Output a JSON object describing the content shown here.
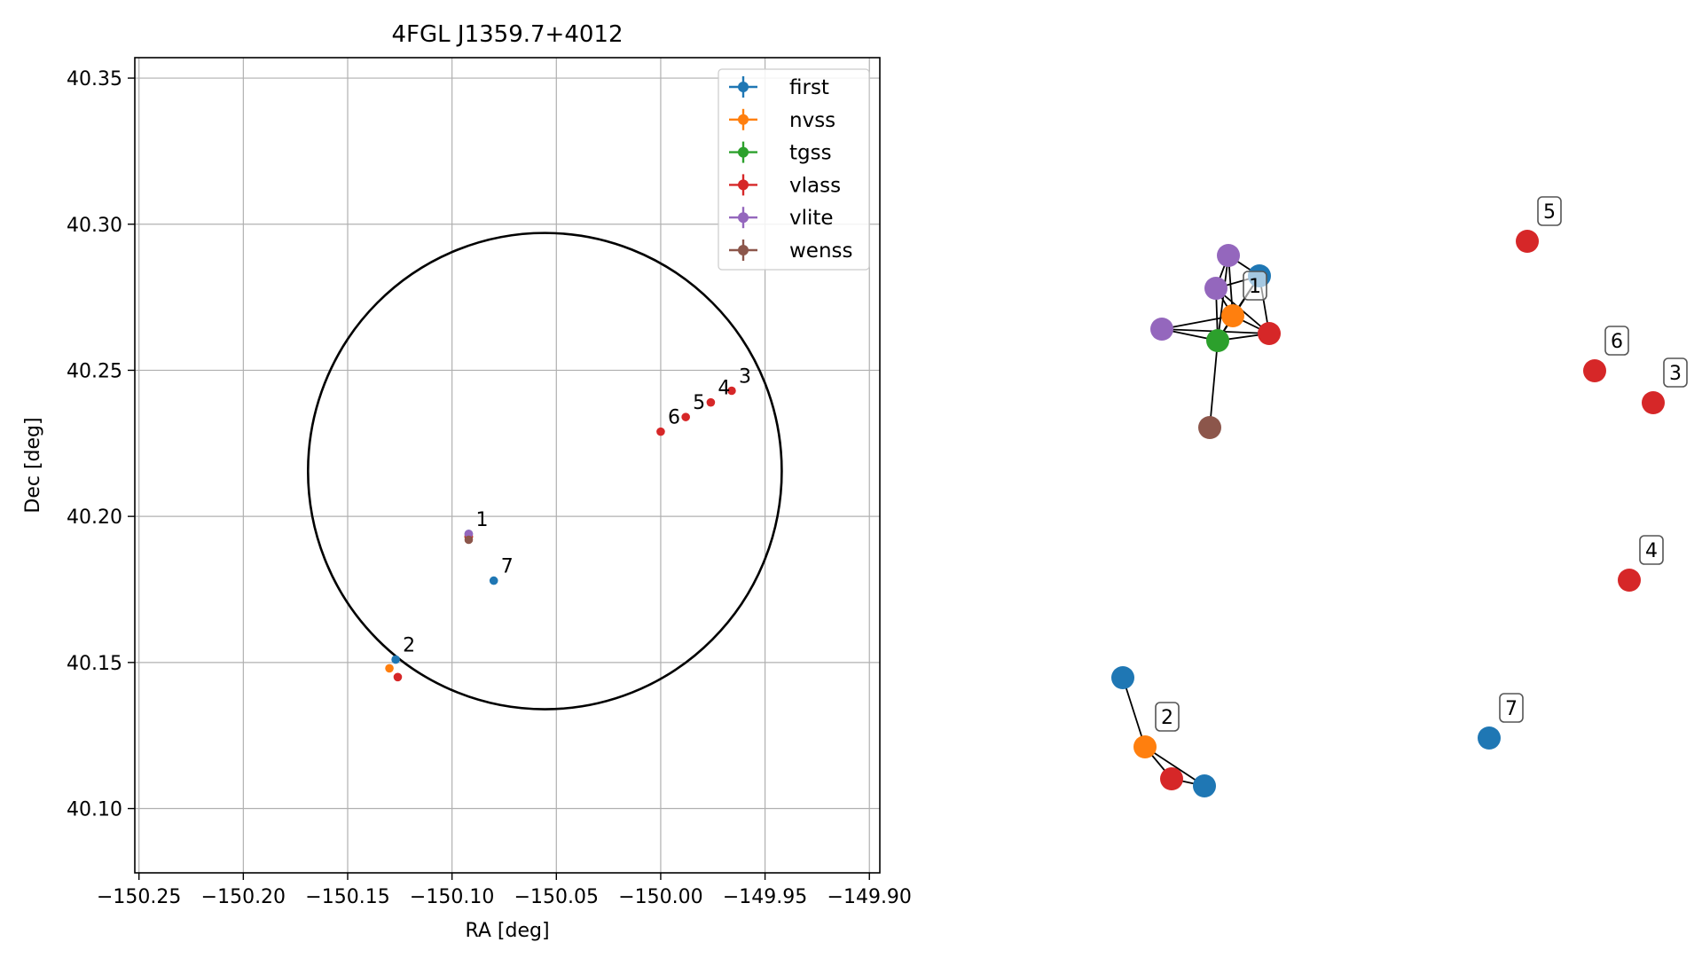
{
  "chart_data": [
    {
      "type": "scatter",
      "title": "4FGL J1359.7+4012",
      "xlabel": "RA [deg]",
      "ylabel": "Dec [deg]",
      "xlim": [
        -150.252,
        -149.895
      ],
      "ylim": [
        40.078,
        40.357
      ],
      "xticks": [
        -150.25,
        -150.2,
        -150.15,
        -150.1,
        -150.05,
        -150.0,
        -149.95,
        -149.9
      ],
      "xtick_labels": [
        "−150.25",
        "−150.20",
        "−150.15",
        "−150.10",
        "−150.05",
        "−150.00",
        "−149.95",
        "−149.90"
      ],
      "yticks": [
        40.1,
        40.15,
        40.2,
        40.25,
        40.3,
        40.35
      ],
      "ytick_labels": [
        "40.10",
        "40.15",
        "40.20",
        "40.25",
        "40.30",
        "40.35"
      ],
      "grid": true,
      "legend_position": "top-right",
      "series": [
        {
          "name": "first",
          "color": "#1f77b4",
          "points": [
            [
              -150.092,
              40.194
            ],
            [
              -150.127,
              40.151
            ],
            [
              -150.08,
              40.178
            ]
          ]
        },
        {
          "name": "nvss",
          "color": "#ff7f0e",
          "points": [
            [
              -150.092,
              40.193
            ],
            [
              -150.13,
              40.148
            ]
          ]
        },
        {
          "name": "tgss",
          "color": "#2ca02c",
          "points": [
            [
              -150.092,
              40.193
            ]
          ]
        },
        {
          "name": "vlass",
          "color": "#d62728",
          "points": [
            [
              -150.092,
              40.193
            ],
            [
              -150.126,
              40.145
            ],
            [
              -149.966,
              40.243
            ],
            [
              -149.976,
              40.239
            ],
            [
              -149.988,
              40.234
            ],
            [
              -150.0,
              40.229
            ]
          ]
        },
        {
          "name": "vlite",
          "color": "#9467bd",
          "points": [
            [
              -150.092,
              40.194
            ]
          ]
        },
        {
          "name": "wenss",
          "color": "#8c564b",
          "points": [
            [
              -150.092,
              40.192
            ]
          ]
        }
      ],
      "annotations": [
        {
          "text": "1",
          "x": -150.092,
          "y": 40.194
        },
        {
          "text": "2",
          "x": -150.127,
          "y": 40.151
        },
        {
          "text": "3",
          "x": -149.966,
          "y": 40.243
        },
        {
          "text": "4",
          "x": -149.976,
          "y": 40.239
        },
        {
          "text": "5",
          "x": -149.988,
          "y": 40.234
        },
        {
          "text": "6",
          "x": -150.0,
          "y": 40.229
        },
        {
          "text": "7",
          "x": -150.08,
          "y": 40.178
        }
      ],
      "ellipse": {
        "center": [
          -150.0555,
          40.2155
        ],
        "ra_semi_axis": 0.1135,
        "dec_semi_axis": 0.0815,
        "angle_deg": 0,
        "color": "#000000"
      }
    },
    {
      "type": "network",
      "node_colors": {
        "first": "#1f77b4",
        "nvss": "#ff7f0e",
        "tgss": "#2ca02c",
        "vlass": "#d62728",
        "vlite": "#9467bd",
        "wenss": "#8c564b"
      },
      "nodes": [
        {
          "id": "n_first1",
          "survey": "first"
        },
        {
          "id": "n_vlite1",
          "survey": "vlite"
        },
        {
          "id": "n_vlite2",
          "survey": "vlite"
        },
        {
          "id": "n_vlite3",
          "survey": "vlite"
        },
        {
          "id": "n_nvss1",
          "survey": "nvss"
        },
        {
          "id": "n_vlass1",
          "survey": "vlass"
        },
        {
          "id": "n_tgss1",
          "survey": "tgss"
        },
        {
          "id": "n_wenss1",
          "survey": "wenss"
        },
        {
          "id": "n_first2a",
          "survey": "first"
        },
        {
          "id": "n_nvss2",
          "survey": "nvss"
        },
        {
          "id": "n_vlass2",
          "survey": "vlass"
        },
        {
          "id": "n_first2b",
          "survey": "first"
        },
        {
          "id": "n_vlass5",
          "survey": "vlass"
        },
        {
          "id": "n_vlass6",
          "survey": "vlass"
        },
        {
          "id": "n_vlass3",
          "survey": "vlass"
        },
        {
          "id": "n_vlass4",
          "survey": "vlass"
        },
        {
          "id": "n_first7",
          "survey": "first"
        }
      ],
      "edges": [
        [
          "n_first1",
          "n_vlite1"
        ],
        [
          "n_first1",
          "n_vlite2"
        ],
        [
          "n_first1",
          "n_nvss1"
        ],
        [
          "n_first1",
          "n_tgss1"
        ],
        [
          "n_first1",
          "n_vlass1"
        ],
        [
          "n_vlite1",
          "n_vlite2"
        ],
        [
          "n_vlite1",
          "n_nvss1"
        ],
        [
          "n_vlite1",
          "n_tgss1"
        ],
        [
          "n_vlite2",
          "n_nvss1"
        ],
        [
          "n_vlite2",
          "n_tgss1"
        ],
        [
          "n_vlite2",
          "n_vlass1"
        ],
        [
          "n_vlite3",
          "n_tgss1"
        ],
        [
          "n_vlite3",
          "n_nvss1"
        ],
        [
          "n_vlite3",
          "n_vlass1"
        ],
        [
          "n_nvss1",
          "n_tgss1"
        ],
        [
          "n_nvss1",
          "n_vlass1"
        ],
        [
          "n_tgss1",
          "n_vlass1"
        ],
        [
          "n_tgss1",
          "n_wenss1"
        ],
        [
          "n_first2a",
          "n_nvss2"
        ],
        [
          "n_nvss2",
          "n_vlass2"
        ],
        [
          "n_nvss2",
          "n_first2b"
        ],
        [
          "n_vlass2",
          "n_first2b"
        ]
      ],
      "labels": [
        {
          "text": "1",
          "node": "n_nvss1"
        },
        {
          "text": "2",
          "node": "n_nvss2"
        },
        {
          "text": "3",
          "node": "n_vlass3"
        },
        {
          "text": "4",
          "node": "n_vlass4"
        },
        {
          "text": "5",
          "node": "n_vlass5"
        },
        {
          "text": "6",
          "node": "n_vlass6"
        },
        {
          "text": "7",
          "node": "n_first7"
        }
      ]
    }
  ]
}
